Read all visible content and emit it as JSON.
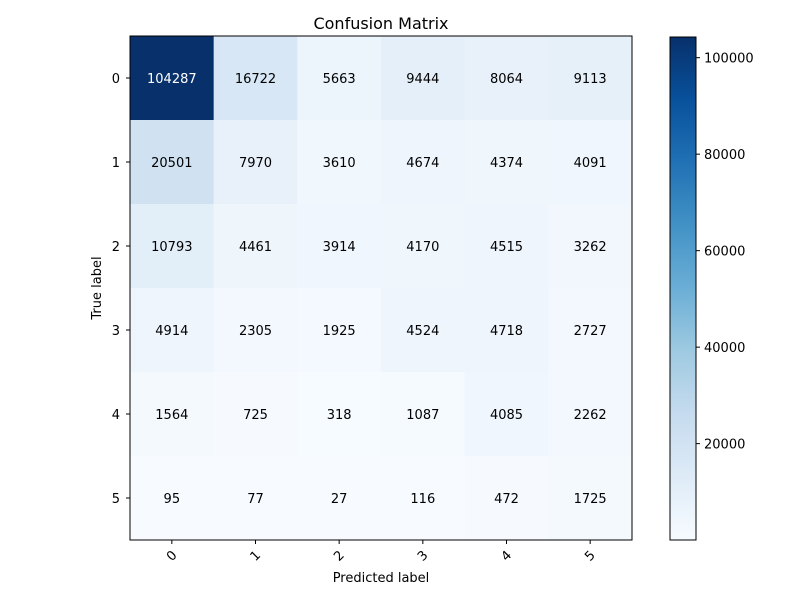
{
  "chart_data": {
    "type": "heatmap",
    "title": "Confusion Matrix",
    "xlabel": "Predicted label",
    "ylabel": "True label",
    "x_tick_labels": [
      "0",
      "1",
      "2",
      "3",
      "4",
      "5"
    ],
    "y_tick_labels": [
      "0",
      "1",
      "2",
      "3",
      "4",
      "5"
    ],
    "matrix": [
      [
        104287,
        16722,
        5663,
        9444,
        8064,
        9113
      ],
      [
        20501,
        7970,
        3610,
        4674,
        4374,
        4091
      ],
      [
        10793,
        4461,
        3914,
        4170,
        4515,
        3262
      ],
      [
        4914,
        2305,
        1925,
        4524,
        4718,
        2727
      ],
      [
        1564,
        725,
        318,
        1087,
        4085,
        2262
      ],
      [
        95,
        77,
        27,
        116,
        472,
        1725
      ]
    ],
    "colormap": "Blues",
    "color_range": [
      27,
      104287
    ],
    "colorbar_ticks": [
      "20000",
      "40000",
      "60000",
      "80000",
      "100000"
    ],
    "colorbar_tick_values": [
      20000,
      40000,
      60000,
      80000,
      100000
    ],
    "colors": {
      "low": "#f7fbff",
      "high": "#08306b",
      "text_dark": "#000000",
      "text_light": "#ffffff"
    }
  }
}
